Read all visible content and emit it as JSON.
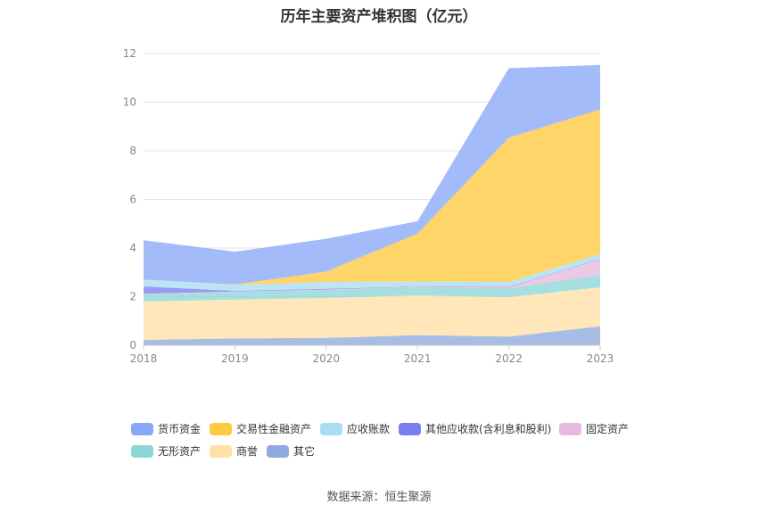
{
  "title": "历年主要资产堆积图（亿元）",
  "source": "数据来源：恒生聚源",
  "chart_data": {
    "type": "area",
    "stacked": true,
    "x": [
      "2018",
      "2019",
      "2020",
      "2021",
      "2022",
      "2023"
    ],
    "ylim": [
      0,
      12
    ],
    "yticks": [
      "0",
      "2",
      "4",
      "6",
      "8",
      "10",
      "12"
    ],
    "grid": true,
    "legend_position": "bottom",
    "series": [
      {
        "name": "其它",
        "color": "#8faadc",
        "values": [
          0.22,
          0.28,
          0.3,
          0.42,
          0.36,
          0.78
        ]
      },
      {
        "name": "商誉",
        "color": "#ffe0a6",
        "values": [
          1.58,
          1.6,
          1.65,
          1.63,
          1.62,
          1.6
        ]
      },
      {
        "name": "无形资产",
        "color": "#8dd6d6",
        "values": [
          0.3,
          0.31,
          0.32,
          0.33,
          0.36,
          0.52
        ]
      },
      {
        "name": "固定资产",
        "color": "#e8b9dd",
        "values": [
          0.02,
          0.02,
          0.02,
          0.02,
          0.05,
          0.63
        ]
      },
      {
        "name": "其他应收款(含利息和股利)",
        "color": "#7b7ef0",
        "values": [
          0.3,
          0.03,
          0.03,
          0.02,
          0.02,
          0.02
        ]
      },
      {
        "name": "应收账款",
        "color": "#a9dcf5",
        "values": [
          0.28,
          0.24,
          0.28,
          0.2,
          0.19,
          0.2
        ]
      },
      {
        "name": "交易性金融资产",
        "color": "#ffc940",
        "values": [
          0.0,
          0.02,
          0.43,
          1.98,
          5.94,
          5.95
        ]
      },
      {
        "name": "货币资金",
        "color": "#8aa8f8",
        "values": [
          1.62,
          1.35,
          1.35,
          0.5,
          2.86,
          1.83
        ]
      }
    ]
  },
  "legend_order": [
    "货币资金",
    "交易性金融资产",
    "应收账款",
    "其他应收款(含利息和股利)",
    "固定资产",
    "无形资产",
    "商誉",
    "其它"
  ]
}
